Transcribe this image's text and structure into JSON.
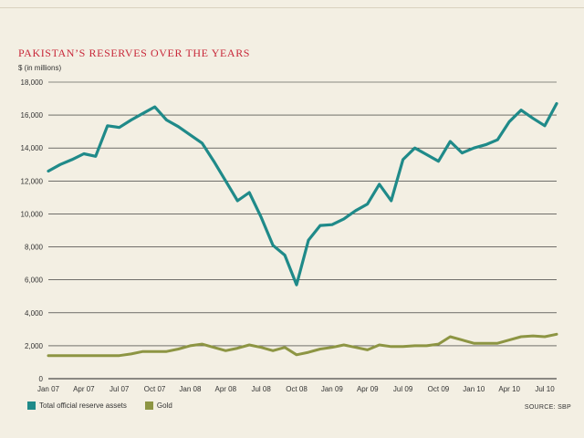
{
  "title": "PAKISTAN’S RESERVES OVER THE YEARS",
  "unit_label": "$ (in millions)",
  "source": "SOURCE: SBP",
  "colors": {
    "total": "#1f8a89",
    "gold": "#8d9543",
    "grid": "#222222",
    "title": "#c8283a",
    "background": "#f3efe3"
  },
  "chart_data": {
    "type": "line",
    "title": "PAKISTAN’S RESERVES OVER THE YEARS",
    "ylabel": "$ (in millions)",
    "xlabel": "",
    "ylim": [
      0,
      18000
    ],
    "yticks": [
      0,
      2000,
      4000,
      6000,
      8000,
      10000,
      12000,
      14000,
      16000,
      18000
    ],
    "ytick_labels": [
      "0",
      "2,000",
      "4,000",
      "6,000",
      "8,000",
      "10,000",
      "12,000",
      "14,000",
      "16,000",
      "18,000"
    ],
    "x_tick_labels": [
      "Jan 07",
      "Apr 07",
      "Jul 07",
      "Oct 07",
      "Jan 08",
      "Apr 08",
      "Jul 08",
      "Oct 08",
      "Jan 09",
      "Apr 09",
      "Jul 09",
      "Oct 09",
      "Jan 10",
      "Apr 10",
      "Jul 10"
    ],
    "x_tick_month_index": [
      0,
      3,
      6,
      9,
      12,
      15,
      18,
      21,
      24,
      27,
      30,
      33,
      36,
      39,
      42
    ],
    "grid": true,
    "legend": "bottom-left",
    "series": [
      {
        "name": "Total official reserve assets",
        "color": "#1f8a89",
        "points": [
          [
            0,
            12600
          ],
          [
            1,
            13000
          ],
          [
            2,
            13300
          ],
          [
            3,
            13650
          ],
          [
            4,
            13500
          ],
          [
            5,
            15350
          ],
          [
            6,
            15250
          ],
          [
            7,
            15700
          ],
          [
            8,
            16100
          ],
          [
            9,
            16500
          ],
          [
            10,
            15700
          ],
          [
            11,
            15300
          ],
          [
            12,
            14800
          ],
          [
            13,
            14300
          ],
          [
            14,
            13200
          ],
          [
            15,
            12000
          ],
          [
            16,
            10800
          ],
          [
            17,
            11300
          ],
          [
            18,
            9800
          ],
          [
            19,
            8100
          ],
          [
            20,
            7500
          ],
          [
            21,
            5700
          ],
          [
            22,
            8400
          ],
          [
            23,
            9300
          ],
          [
            24,
            9350
          ],
          [
            25,
            9700
          ],
          [
            26,
            10200
          ],
          [
            27,
            10600
          ],
          [
            28,
            11800
          ],
          [
            29,
            10800
          ],
          [
            30,
            13300
          ],
          [
            31,
            14000
          ],
          [
            32,
            13600
          ],
          [
            33,
            13200
          ],
          [
            34,
            14400
          ],
          [
            35,
            13700
          ],
          [
            36,
            14000
          ],
          [
            37,
            14200
          ],
          [
            38,
            14500
          ],
          [
            39,
            15600
          ],
          [
            40,
            16300
          ],
          [
            41,
            15800
          ],
          [
            42,
            15350
          ],
          [
            43,
            16700
          ]
        ]
      },
      {
        "name": "Gold",
        "color": "#8d9543",
        "points": [
          [
            0,
            1400
          ],
          [
            1,
            1400
          ],
          [
            2,
            1400
          ],
          [
            3,
            1400
          ],
          [
            4,
            1400
          ],
          [
            5,
            1400
          ],
          [
            6,
            1400
          ],
          [
            7,
            1500
          ],
          [
            8,
            1650
          ],
          [
            9,
            1650
          ],
          [
            10,
            1650
          ],
          [
            11,
            1800
          ],
          [
            12,
            2000
          ],
          [
            13,
            2100
          ],
          [
            14,
            1900
          ],
          [
            15,
            1700
          ],
          [
            16,
            1850
          ],
          [
            17,
            2050
          ],
          [
            18,
            1900
          ],
          [
            19,
            1700
          ],
          [
            20,
            1900
          ],
          [
            21,
            1450
          ],
          [
            22,
            1600
          ],
          [
            23,
            1800
          ],
          [
            24,
            1900
          ],
          [
            25,
            2050
          ],
          [
            26,
            1900
          ],
          [
            27,
            1750
          ],
          [
            28,
            2050
          ],
          [
            29,
            1950
          ],
          [
            30,
            1950
          ],
          [
            31,
            2000
          ],
          [
            32,
            2000
          ],
          [
            33,
            2100
          ],
          [
            34,
            2550
          ],
          [
            35,
            2350
          ],
          [
            36,
            2150
          ],
          [
            37,
            2150
          ],
          [
            38,
            2150
          ],
          [
            39,
            2350
          ],
          [
            40,
            2550
          ],
          [
            41,
            2600
          ],
          [
            42,
            2550
          ],
          [
            43,
            2700
          ]
        ]
      }
    ]
  }
}
